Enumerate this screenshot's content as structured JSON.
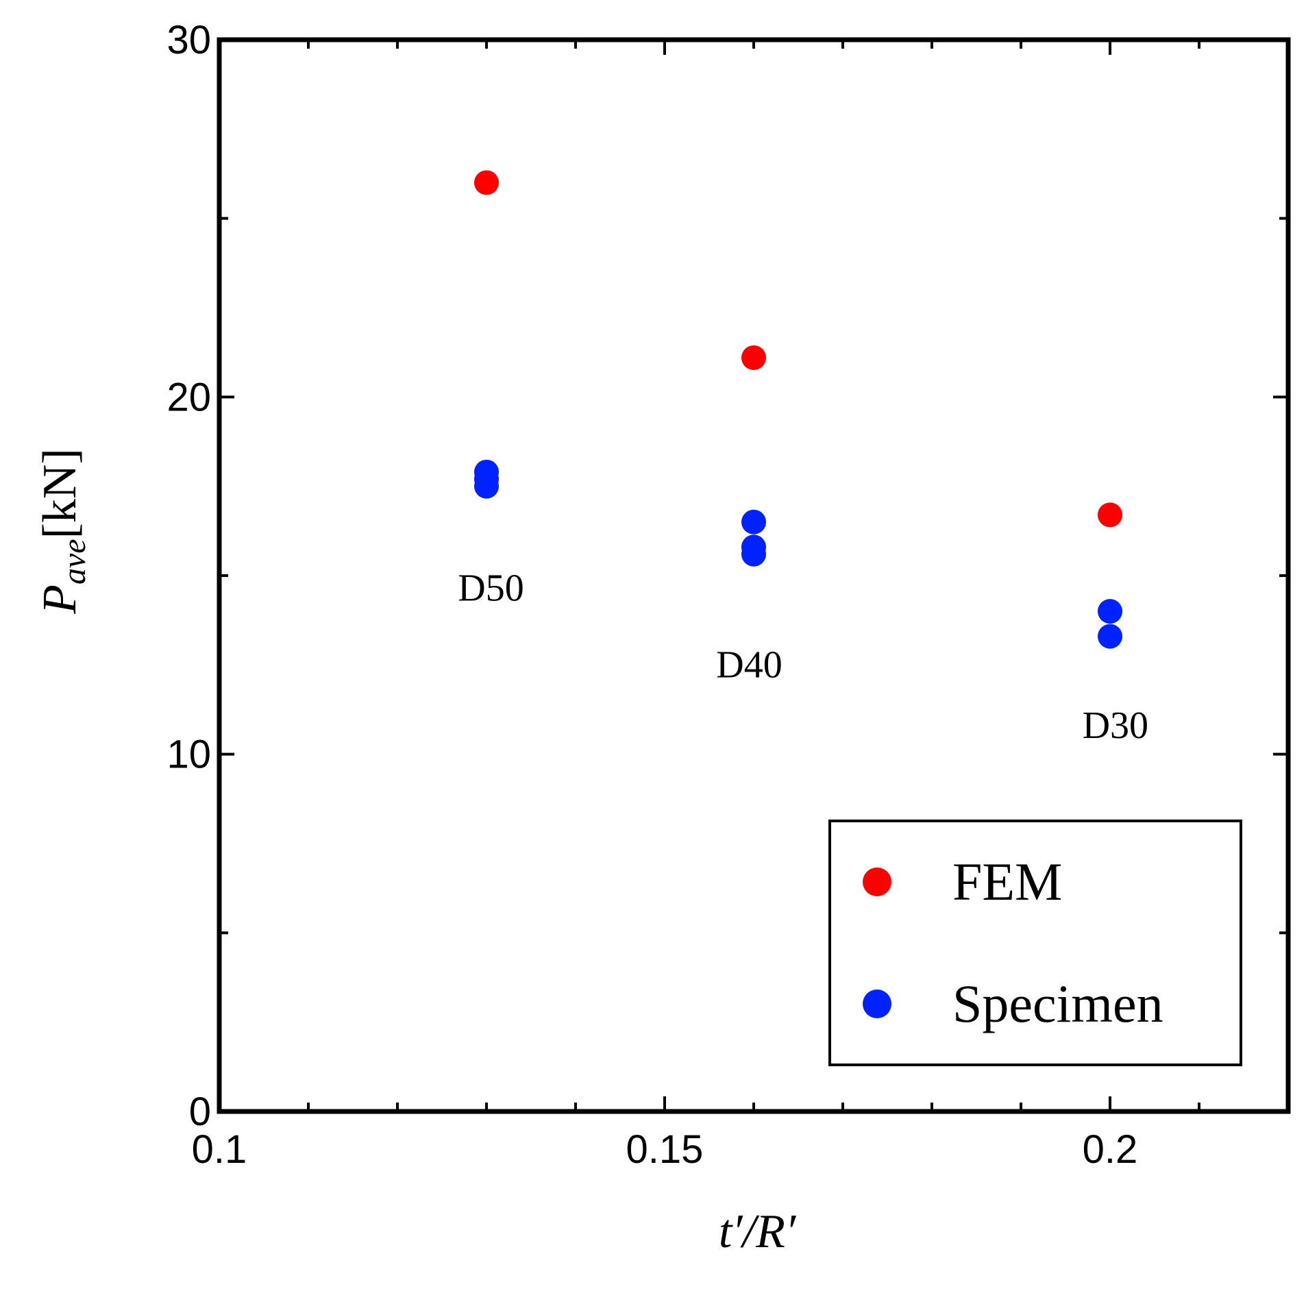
{
  "chart_data": {
    "type": "scatter",
    "title": "",
    "xlabel": "t′/R′",
    "ylabel_main": "P",
    "ylabel_sub": "ave",
    "ylabel_unit": "[kN]",
    "xlim": [
      0.1,
      0.22
    ],
    "ylim": [
      0,
      30
    ],
    "x_major_ticks": [
      0.1,
      0.15,
      0.2
    ],
    "x_tick_labels": [
      "0.1",
      "0.15",
      "0.2"
    ],
    "x_minor_ticks": [
      0.11,
      0.12,
      0.13,
      0.14,
      0.16,
      0.17,
      0.18,
      0.19,
      0.21
    ],
    "y_major_ticks": [
      0,
      10,
      20,
      30
    ],
    "y_tick_labels": [
      "0",
      "10",
      "20",
      "30"
    ],
    "y_minor_ticks": [
      5,
      15,
      25
    ],
    "grid": false,
    "legend_position": "bottom-right",
    "series": [
      {
        "name": "FEM",
        "color": "#ff0000",
        "points": [
          {
            "x": 0.13,
            "y": 26.0
          },
          {
            "x": 0.16,
            "y": 21.1
          },
          {
            "x": 0.2,
            "y": 16.7
          }
        ]
      },
      {
        "name": "Specimen",
        "color": "#0022ff",
        "points": [
          {
            "x": 0.13,
            "y": 17.9
          },
          {
            "x": 0.13,
            "y": 17.7
          },
          {
            "x": 0.13,
            "y": 17.5
          },
          {
            "x": 0.16,
            "y": 16.5
          },
          {
            "x": 0.16,
            "y": 15.8
          },
          {
            "x": 0.16,
            "y": 15.6
          },
          {
            "x": 0.2,
            "y": 14.0
          },
          {
            "x": 0.2,
            "y": 13.3
          }
        ]
      }
    ],
    "annotations": [
      {
        "text": "D50",
        "x": 0.1305,
        "y": 14.3
      },
      {
        "text": "D40",
        "x": 0.1595,
        "y": 12.15
      },
      {
        "text": "D30",
        "x": 0.2006,
        "y": 10.45
      }
    ]
  }
}
